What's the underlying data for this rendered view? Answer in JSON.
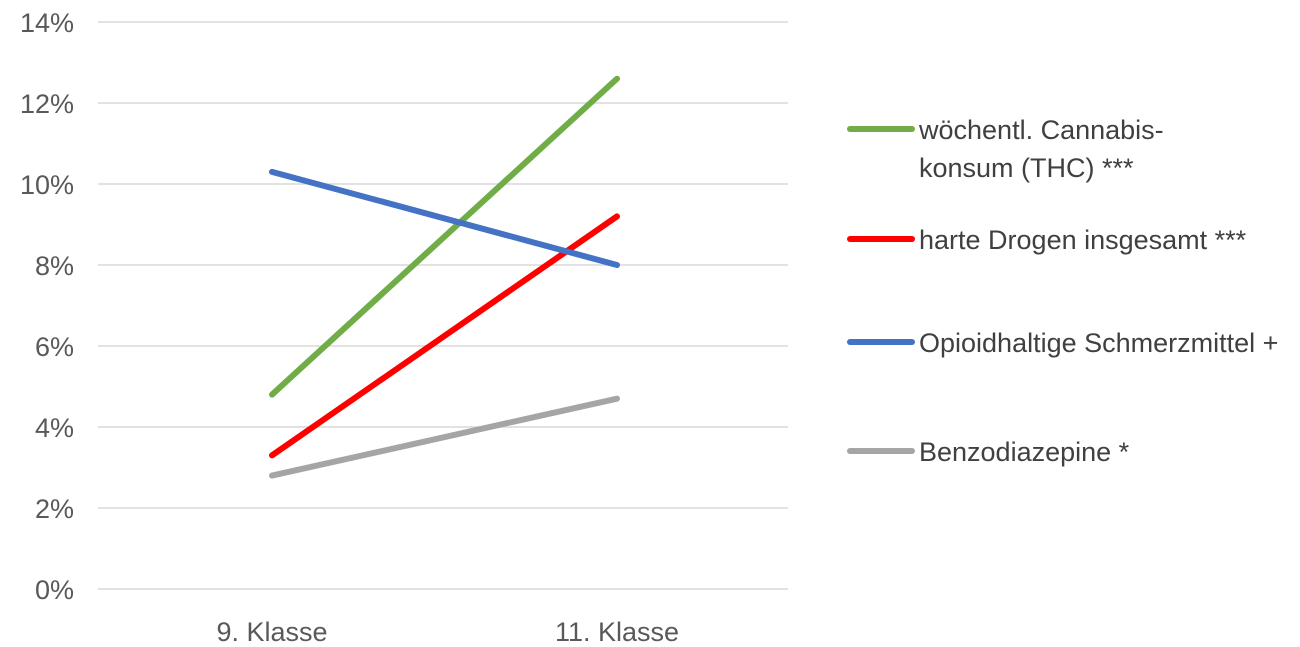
{
  "chart_data": {
    "type": "line",
    "title": "",
    "xlabel": "",
    "ylabel": "",
    "categories": [
      "9. Klasse",
      "11. Klasse"
    ],
    "ylim": [
      0,
      14
    ],
    "yticks": [
      0,
      2,
      4,
      6,
      8,
      10,
      12,
      14
    ],
    "ytick_labels": [
      "0%",
      "2%",
      "4%",
      "6%",
      "8%",
      "10%",
      "12%",
      "14%"
    ],
    "grid": "horizontal",
    "legend_position": "right",
    "series": [
      {
        "name_lines": [
          "wöchentl. Cannabis-",
          "konsum (THC) ***"
        ],
        "color": "#70AD47",
        "values": [
          4.8,
          12.6
        ]
      },
      {
        "name_lines": [
          "harte Drogen insgesamt ***"
        ],
        "color": "#FF0000",
        "values": [
          3.3,
          9.2
        ]
      },
      {
        "name_lines": [
          "Opioidhaltige Schmerzmittel +"
        ],
        "color": "#4472C4",
        "values": [
          10.3,
          8.0
        ]
      },
      {
        "name_lines": [
          "Benzodiazepine *"
        ],
        "color": "#A5A5A5",
        "values": [
          2.8,
          4.7
        ]
      }
    ]
  }
}
